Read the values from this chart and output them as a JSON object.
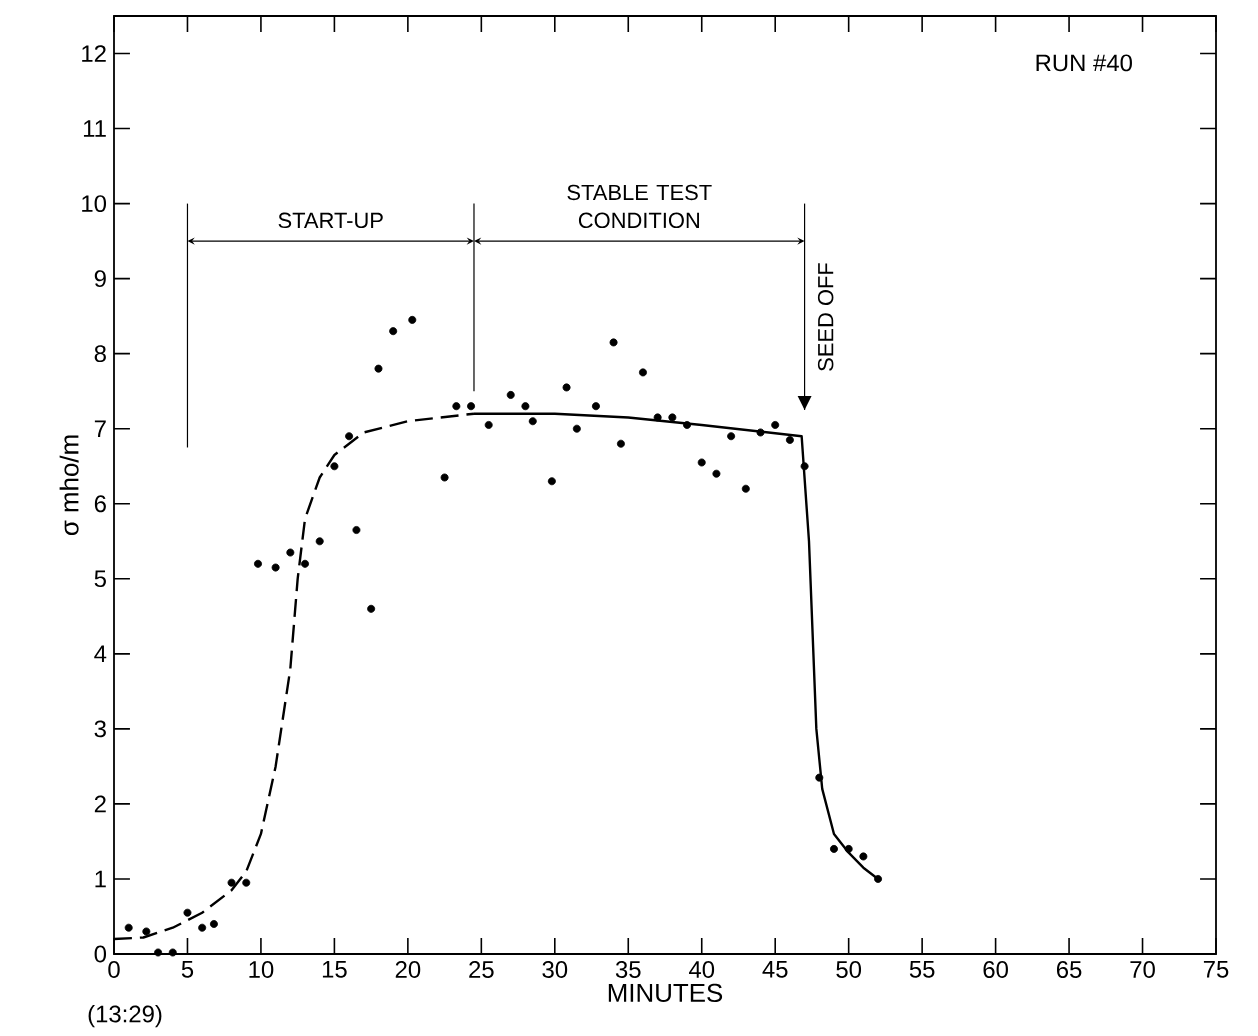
{
  "chart_data": {
    "type": "scatter",
    "xlabel": "MINUTES",
    "ylabel": "σ mho/m",
    "xlim": [
      0,
      75
    ],
    "ylim": [
      0,
      12.5
    ],
    "xticks": [
      0,
      5,
      10,
      15,
      20,
      25,
      30,
      35,
      40,
      45,
      50,
      55,
      60,
      65,
      70,
      75
    ],
    "yticks": [
      0,
      1,
      2,
      3,
      4,
      5,
      6,
      7,
      8,
      9,
      10,
      11,
      12
    ],
    "grid": false,
    "annotations": [
      "RUN #40",
      "(13:29)",
      "START-UP",
      "STABLE TEST CONDITION"
    ],
    "ref_lines": [
      {
        "axis": "x",
        "value": 5
      },
      {
        "axis": "x",
        "value": 24.5
      },
      {
        "axis": "x",
        "value": 47,
        "label": "SEED OFF"
      }
    ],
    "series": [
      {
        "color": "#000000",
        "marker": "circle",
        "x": [
          1,
          2.2,
          3,
          4,
          5,
          6,
          6.8,
          8,
          9,
          9.8,
          11,
          12,
          13,
          14,
          16.5,
          17.5,
          15,
          16,
          18,
          19,
          20.3,
          22.5,
          23.3,
          24.3,
          25.5,
          27,
          28,
          28.5,
          29.8,
          30.8,
          31.5,
          32.8,
          34,
          34.5,
          36,
          37,
          38,
          39,
          40,
          41,
          42,
          43,
          44,
          45,
          46,
          47,
          48,
          49,
          50,
          51,
          52
        ],
        "values": [
          0.35,
          0.3,
          0.02,
          0.02,
          0.55,
          0.35,
          0.4,
          0.95,
          0.95,
          5.2,
          5.15,
          5.35,
          5.2,
          5.5,
          5.65,
          4.6,
          6.5,
          6.9,
          7.8,
          8.3,
          8.45,
          6.35,
          7.3,
          7.3,
          7.05,
          7.45,
          7.3,
          7.1,
          6.3,
          7.55,
          7.0,
          7.3,
          8.15,
          6.8,
          7.75,
          7.15,
          7.15,
          7.05,
          6.55,
          6.4,
          6.9,
          6.2,
          6.95,
          7.05,
          6.85,
          6.5,
          2.35,
          1.4,
          1.4,
          1.3,
          1.0
        ]
      },
      {
        "type": "line",
        "color": "#000000",
        "marker": "none",
        "line_style": "dashed",
        "x": [
          0,
          2,
          4,
          6,
          8,
          9,
          10,
          11,
          12,
          12.5,
          13,
          14,
          15,
          17,
          20,
          24.5
        ],
        "values": [
          0.2,
          0.22,
          0.35,
          0.55,
          0.85,
          1.1,
          1.6,
          2.5,
          3.8,
          5.0,
          5.8,
          6.35,
          6.65,
          6.95,
          7.1,
          7.2
        ]
      },
      {
        "type": "line",
        "color": "#000000",
        "marker": "none",
        "line_style": "solid",
        "x": [
          24.5,
          30,
          35,
          40,
          46.8,
          47.3,
          47.8,
          48.2,
          49,
          50,
          51,
          52
        ],
        "values": [
          7.2,
          7.2,
          7.15,
          7.05,
          6.9,
          5.5,
          3.0,
          2.2,
          1.6,
          1.35,
          1.15,
          1.0
        ]
      }
    ]
  }
}
